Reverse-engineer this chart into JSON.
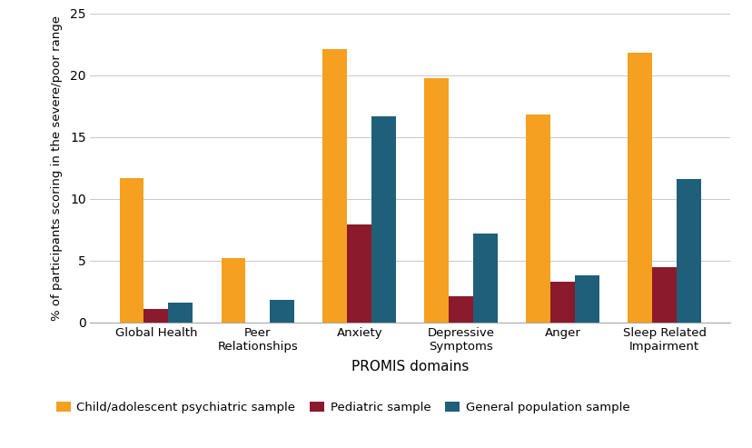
{
  "categories": [
    "Global Health",
    "Peer\nRelationships",
    "Anxiety",
    "Depressive\nSymptoms",
    "Anger",
    "Sleep Related\nImpairment"
  ],
  "series": {
    "Child/adolescent psychiatric sample": [
      11.7,
      5.2,
      22.1,
      19.8,
      16.8,
      21.8
    ],
    "Pediatric sample": [
      1.1,
      0.0,
      7.9,
      2.1,
      3.3,
      4.5
    ],
    "General population sample": [
      1.6,
      1.8,
      16.7,
      7.2,
      3.8,
      11.6
    ]
  },
  "colors": {
    "Child/adolescent psychiatric sample": "#F5A020",
    "Pediatric sample": "#8B1A2C",
    "General population sample": "#1F5F7A"
  },
  "ylabel": "% of participants scoring in the severe/poor range",
  "xlabel": "PROMIS domains",
  "ylim": [
    0,
    25
  ],
  "yticks": [
    0,
    5,
    10,
    15,
    20,
    25
  ],
  "bar_width": 0.24,
  "figsize": [
    8.29,
    4.93
  ],
  "dpi": 100,
  "background_color": "#ffffff",
  "grid_color": "#cccccc"
}
